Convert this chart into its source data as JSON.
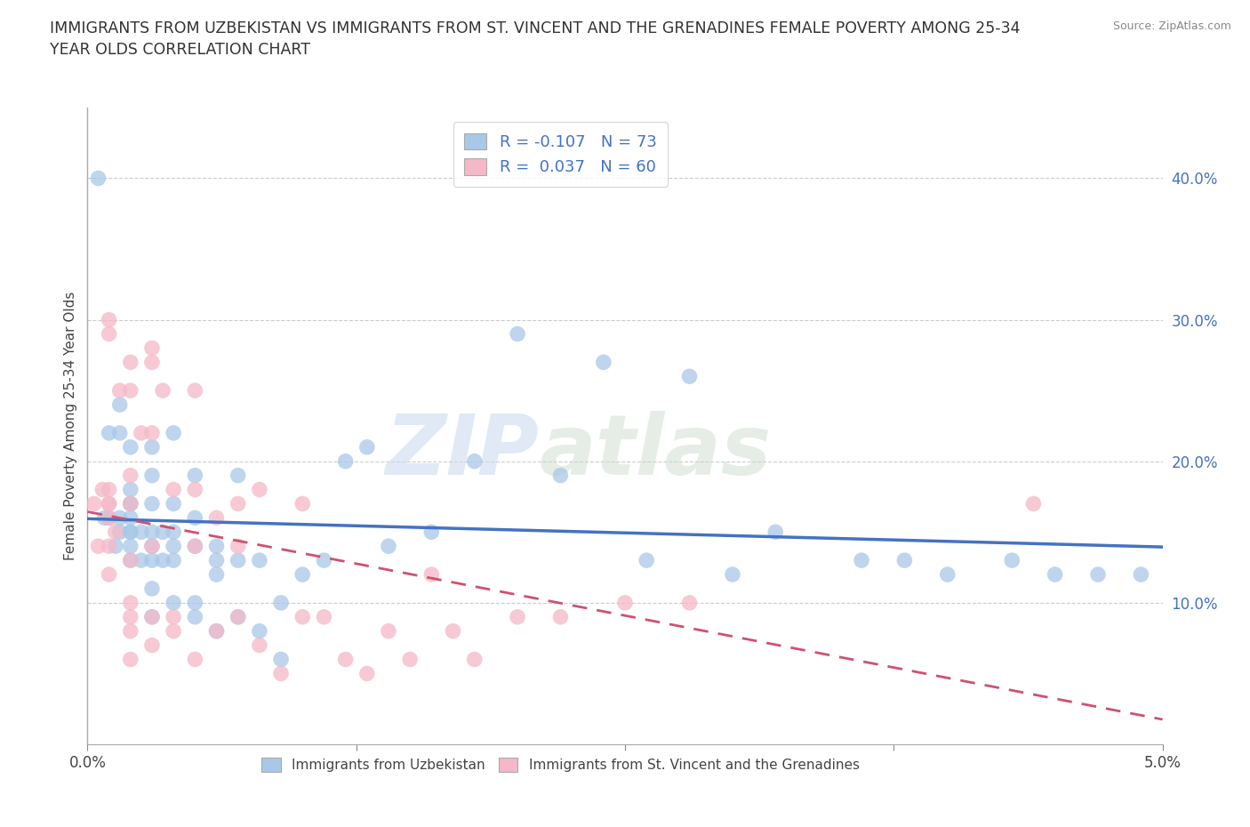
{
  "title": "IMMIGRANTS FROM UZBEKISTAN VS IMMIGRANTS FROM ST. VINCENT AND THE GRENADINES FEMALE POVERTY AMONG 25-34\nYEAR OLDS CORRELATION CHART",
  "source": "Source: ZipAtlas.com",
  "ylabel": "Female Poverty Among 25-34 Year Olds",
  "ylabel_right_ticks": [
    "10.0%",
    "20.0%",
    "30.0%",
    "40.0%"
  ],
  "ylabel_right_vals": [
    0.1,
    0.2,
    0.3,
    0.4
  ],
  "watermark_zip": "ZIP",
  "watermark_atlas": "atlas",
  "legend_r1": "R = -0.107   N = 73",
  "legend_r2": "R =  0.037   N = 60",
  "color_uzbekistan": "#a8c8e8",
  "color_stvincent": "#f5b8c8",
  "line_uzbekistan": "#4472c4",
  "line_stvincent": "#d05070",
  "xlim": [
    0.0,
    0.05
  ],
  "ylim": [
    0.0,
    0.45
  ],
  "uzbekistan_x": [
    0.0005,
    0.0008,
    0.001,
    0.001,
    0.0013,
    0.0015,
    0.0015,
    0.0015,
    0.0015,
    0.002,
    0.002,
    0.002,
    0.002,
    0.002,
    0.002,
    0.002,
    0.002,
    0.002,
    0.0025,
    0.0025,
    0.003,
    0.003,
    0.003,
    0.003,
    0.003,
    0.003,
    0.003,
    0.003,
    0.0035,
    0.0035,
    0.004,
    0.004,
    0.004,
    0.004,
    0.004,
    0.004,
    0.005,
    0.005,
    0.005,
    0.005,
    0.005,
    0.006,
    0.006,
    0.006,
    0.006,
    0.007,
    0.007,
    0.007,
    0.008,
    0.008,
    0.009,
    0.009,
    0.01,
    0.011,
    0.012,
    0.013,
    0.014,
    0.016,
    0.018,
    0.02,
    0.022,
    0.024,
    0.026,
    0.028,
    0.03,
    0.032,
    0.036,
    0.038,
    0.04,
    0.043,
    0.045,
    0.047,
    0.049
  ],
  "uzbekistan_y": [
    0.4,
    0.16,
    0.16,
    0.22,
    0.14,
    0.15,
    0.16,
    0.22,
    0.24,
    0.13,
    0.14,
    0.15,
    0.15,
    0.16,
    0.17,
    0.17,
    0.18,
    0.21,
    0.13,
    0.15,
    0.09,
    0.11,
    0.13,
    0.14,
    0.15,
    0.17,
    0.19,
    0.21,
    0.13,
    0.15,
    0.1,
    0.13,
    0.14,
    0.15,
    0.17,
    0.22,
    0.09,
    0.1,
    0.14,
    0.16,
    0.19,
    0.08,
    0.12,
    0.13,
    0.14,
    0.09,
    0.13,
    0.19,
    0.08,
    0.13,
    0.06,
    0.1,
    0.12,
    0.13,
    0.2,
    0.21,
    0.14,
    0.15,
    0.2,
    0.29,
    0.19,
    0.27,
    0.13,
    0.26,
    0.12,
    0.15,
    0.13,
    0.13,
    0.12,
    0.13,
    0.12,
    0.12,
    0.12
  ],
  "stvincent_x": [
    0.0003,
    0.0005,
    0.0007,
    0.001,
    0.001,
    0.001,
    0.001,
    0.001,
    0.001,
    0.001,
    0.001,
    0.0013,
    0.0015,
    0.002,
    0.002,
    0.002,
    0.002,
    0.002,
    0.002,
    0.002,
    0.002,
    0.002,
    0.0025,
    0.003,
    0.003,
    0.003,
    0.003,
    0.003,
    0.003,
    0.0035,
    0.004,
    0.004,
    0.004,
    0.005,
    0.005,
    0.005,
    0.005,
    0.006,
    0.006,
    0.007,
    0.007,
    0.007,
    0.008,
    0.008,
    0.009,
    0.01,
    0.01,
    0.011,
    0.012,
    0.013,
    0.014,
    0.015,
    0.016,
    0.017,
    0.018,
    0.02,
    0.022,
    0.025,
    0.028,
    0.044
  ],
  "stvincent_y": [
    0.17,
    0.14,
    0.18,
    0.12,
    0.14,
    0.16,
    0.17,
    0.29,
    0.3,
    0.17,
    0.18,
    0.15,
    0.25,
    0.06,
    0.08,
    0.09,
    0.1,
    0.13,
    0.17,
    0.19,
    0.25,
    0.27,
    0.22,
    0.07,
    0.09,
    0.14,
    0.22,
    0.27,
    0.28,
    0.25,
    0.08,
    0.09,
    0.18,
    0.06,
    0.14,
    0.18,
    0.25,
    0.08,
    0.16,
    0.09,
    0.14,
    0.17,
    0.07,
    0.18,
    0.05,
    0.09,
    0.17,
    0.09,
    0.06,
    0.05,
    0.08,
    0.06,
    0.12,
    0.08,
    0.06,
    0.09,
    0.09,
    0.1,
    0.1,
    0.17
  ]
}
